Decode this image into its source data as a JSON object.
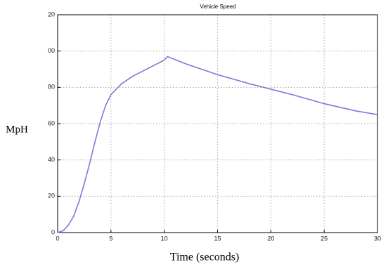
{
  "chart_data": {
    "type": "line",
    "title": "Vehicle Speed",
    "x_label": "Time (seconds)",
    "y_label": "MpH",
    "series": [
      {
        "color": "#7b7bd6",
        "x": [
          0,
          0.5,
          1,
          1.5,
          2,
          2.5,
          3,
          3.5,
          4,
          4.5,
          5,
          6,
          7,
          8,
          9,
          10,
          10.3,
          12,
          15,
          18,
          20,
          22,
          25,
          28,
          30
        ],
        "values": [
          0,
          1,
          4,
          9,
          17,
          27,
          38,
          50,
          61,
          70,
          76,
          82,
          86,
          89,
          92,
          95,
          97,
          93,
          87,
          82,
          79,
          76,
          71,
          67,
          65
        ]
      }
    ],
    "xlim": [
      0,
      30
    ],
    "xticks": [
      0,
      5,
      10,
      15,
      20,
      25,
      30
    ],
    "ylim": [
      0,
      120
    ],
    "yticks": [
      0,
      20,
      40,
      60,
      80,
      {
        "value": 100,
        "label": "00"
      },
      {
        "value": 120,
        "label": "20"
      }
    ],
    "grid": true
  }
}
